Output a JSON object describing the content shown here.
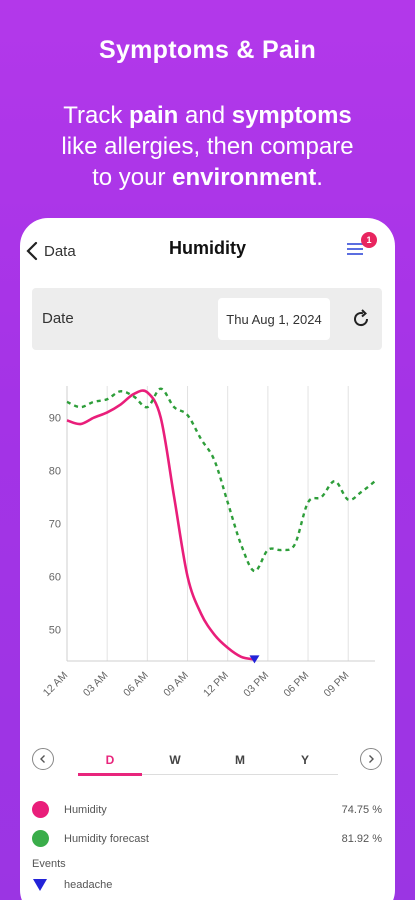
{
  "promo": {
    "title": "Symptoms & Pain",
    "line1_pre": "Track ",
    "line1_b1": "pain",
    "line1_mid": " and ",
    "line1_b2": "symptoms",
    "line2": "like allergies, then compare",
    "line3_pre": "to your ",
    "line3_b": "environment",
    "line3_post": "."
  },
  "header": {
    "back_label": "Data",
    "title": "Humidity",
    "badge_count": "1"
  },
  "date_row": {
    "label": "Date",
    "value": "Thu Aug 1, 2024"
  },
  "chart_data": {
    "type": "line",
    "x_ticks": [
      "12 AM",
      "03 AM",
      "06 AM",
      "09 AM",
      "12 PM",
      "03 PM",
      "06 PM",
      "09 PM"
    ],
    "y_ticks": [
      90,
      80,
      70,
      60,
      50
    ],
    "xlim": [
      0,
      23
    ],
    "ylim": [
      44,
      96
    ],
    "grid": "vertical",
    "series": [
      {
        "name": "Humidity",
        "color": "#e91e7a",
        "style": "solid",
        "x": [
          0,
          1,
          2,
          3,
          4,
          5,
          6,
          7,
          8,
          9,
          10,
          11,
          12,
          13,
          14
        ],
        "y": [
          89.5,
          88.8,
          90,
          91,
          92.5,
          94.5,
          94.8,
          90,
          75,
          60,
          53,
          49,
          46.5,
          44.8,
          44.3
        ]
      },
      {
        "name": "Humidity forecast",
        "color": "#2e9e3a",
        "style": "dashed",
        "x": [
          0,
          1,
          2,
          3,
          4,
          5,
          6,
          7,
          8,
          9,
          10,
          11,
          12,
          13,
          14,
          15,
          16,
          17,
          18,
          19,
          20,
          21,
          22,
          23
        ],
        "y": [
          93,
          92,
          93,
          93.5,
          95,
          94,
          92,
          95.5,
          92,
          90.5,
          86,
          82,
          74,
          66,
          61,
          65,
          65,
          66,
          74,
          75,
          78,
          74.5,
          76,
          78
        ]
      }
    ],
    "events": [
      {
        "name": "headache",
        "x": 14,
        "y": 44.3,
        "color": "#2323d8"
      }
    ]
  },
  "period_tabs": [
    "D",
    "W",
    "M",
    "Y"
  ],
  "legend": [
    {
      "name": "Humidity",
      "value": "74.75 %",
      "color": "#e91e7a"
    },
    {
      "name": "Humidity forecast",
      "value": "81.92 %",
      "color": "#3aad4a"
    }
  ],
  "events_section": {
    "label": "Events",
    "items": [
      {
        "name": "headache",
        "color": "#2323d8"
      }
    ]
  }
}
